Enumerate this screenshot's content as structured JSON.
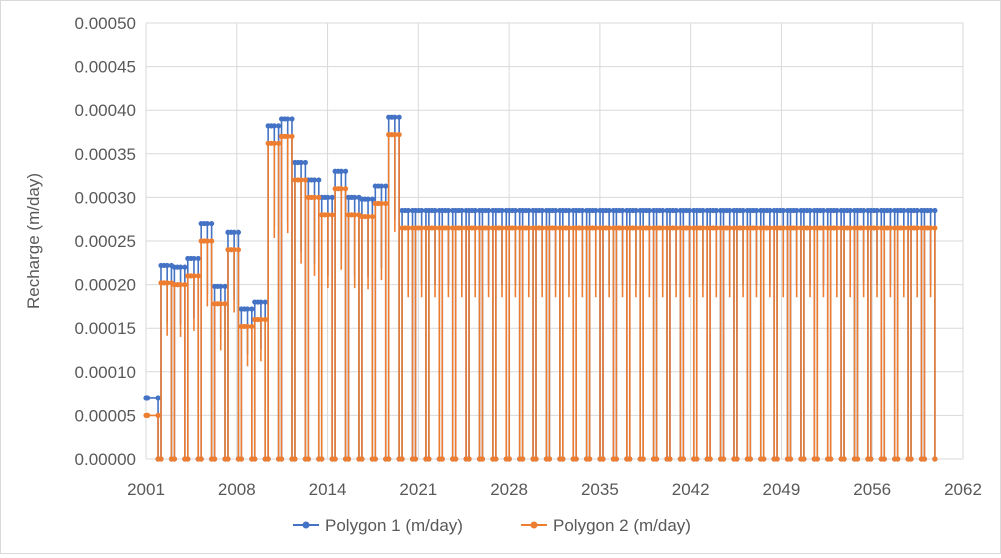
{
  "chart_data": {
    "type": "line",
    "ylabel": "Recharge (m/day)",
    "xlabel": "",
    "xlim": [
      2001,
      2062
    ],
    "ylim": [
      0,
      0.0005
    ],
    "xticks": [
      "2001",
      "2008",
      "2014",
      "2021",
      "2028",
      "2035",
      "2042",
      "2049",
      "2056",
      "2062"
    ],
    "yticks": [
      "0.00000",
      "0.00005",
      "0.00010",
      "0.00015",
      "0.00020",
      "0.00025",
      "0.00030",
      "0.00035",
      "0.00040",
      "0.00045",
      "0.00050"
    ],
    "grid": true,
    "legend_position": "bottom",
    "pattern": "Each year is a block of consecutive time steps: recharge is 0 for most of the year, and during the recharge season it rises through a few intermediate values to the yearly peak listed below.",
    "years": [
      2001,
      2002,
      2003,
      2004,
      2005,
      2006,
      2007,
      2008,
      2009,
      2010,
      2011,
      2012,
      2013,
      2014,
      2015,
      2016,
      2017,
      2018,
      2019,
      2020,
      2021,
      2022,
      2023,
      2024,
      2025,
      2026,
      2027,
      2028,
      2029,
      2030,
      2031,
      2032,
      2033,
      2034,
      2035,
      2036,
      2037,
      2038,
      2039,
      2040,
      2041,
      2042,
      2043,
      2044,
      2045,
      2046,
      2047,
      2048,
      2049,
      2050,
      2051,
      2052,
      2053,
      2054,
      2055,
      2056,
      2057,
      2058,
      2059
    ],
    "series": [
      {
        "name": "Polygon 1 (m/day)",
        "color": "#4472C4",
        "peak_values": [
          7e-05,
          0.000222,
          0.00022,
          0.00023,
          0.00027,
          0.000198,
          0.00026,
          0.000172,
          0.00018,
          0.000382,
          0.00039,
          0.00034,
          0.00032,
          0.0003,
          0.00033,
          0.0003,
          0.000298,
          0.000313,
          0.000392,
          0.000285,
          0.000285,
          0.000285,
          0.000285,
          0.000285,
          0.000285,
          0.000285,
          0.000285,
          0.000285,
          0.000285,
          0.000285,
          0.000285,
          0.000285,
          0.000285,
          0.000285,
          0.000285,
          0.000285,
          0.000285,
          0.000285,
          0.000285,
          0.000285,
          0.000285,
          0.000285,
          0.000285,
          0.000285,
          0.000285,
          0.000285,
          0.000285,
          0.000285,
          0.000285,
          0.000285,
          0.000285,
          0.000285,
          0.000285,
          0.000285,
          0.000285,
          0.000285,
          0.000285,
          0.000285,
          0.000285
        ]
      },
      {
        "name": "Polygon 2 (m/day)",
        "color": "#ED7D31",
        "peak_values": [
          5e-05,
          0.000202,
          0.0002,
          0.00021,
          0.00025,
          0.000178,
          0.00024,
          0.000152,
          0.00016,
          0.000362,
          0.00037,
          0.00032,
          0.0003,
          0.00028,
          0.00031,
          0.00028,
          0.000278,
          0.000293,
          0.000372,
          0.000265,
          0.000265,
          0.000265,
          0.000265,
          0.000265,
          0.000265,
          0.000265,
          0.000265,
          0.000265,
          0.000265,
          0.000265,
          0.000265,
          0.000265,
          0.000265,
          0.000265,
          0.000265,
          0.000265,
          0.000265,
          0.000265,
          0.000265,
          0.000265,
          0.000265,
          0.000265,
          0.000265,
          0.000265,
          0.000265,
          0.000265,
          0.000265,
          0.000265,
          0.000265,
          0.000265,
          0.000265,
          0.000265,
          0.000265,
          0.000265,
          0.000265,
          0.000265,
          0.000265,
          0.000265,
          0.000265
        ]
      }
    ]
  }
}
